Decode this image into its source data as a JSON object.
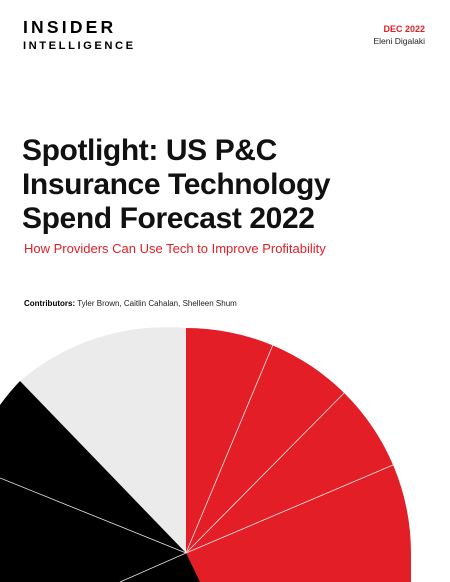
{
  "header": {
    "logo_line1": "INSIDER",
    "logo_line2": "INTELLIGENCE",
    "date": "DEC 2022",
    "author": "Eleni Digalaki"
  },
  "report": {
    "title_lines": [
      "Spotlight: US P&C",
      "Insurance Technology",
      "Spend Forecast 2022"
    ],
    "subtitle": "How Providers Can Use Tech to Improve Profitability",
    "contributors_label": "Contributors:",
    "contributors": "Tyler Brown, Caitlin Cahalan, Shelleen Shum"
  },
  "colors": {
    "brand_red": "#e31e26",
    "black": "#000000",
    "light_gray": "#ebebeb"
  }
}
